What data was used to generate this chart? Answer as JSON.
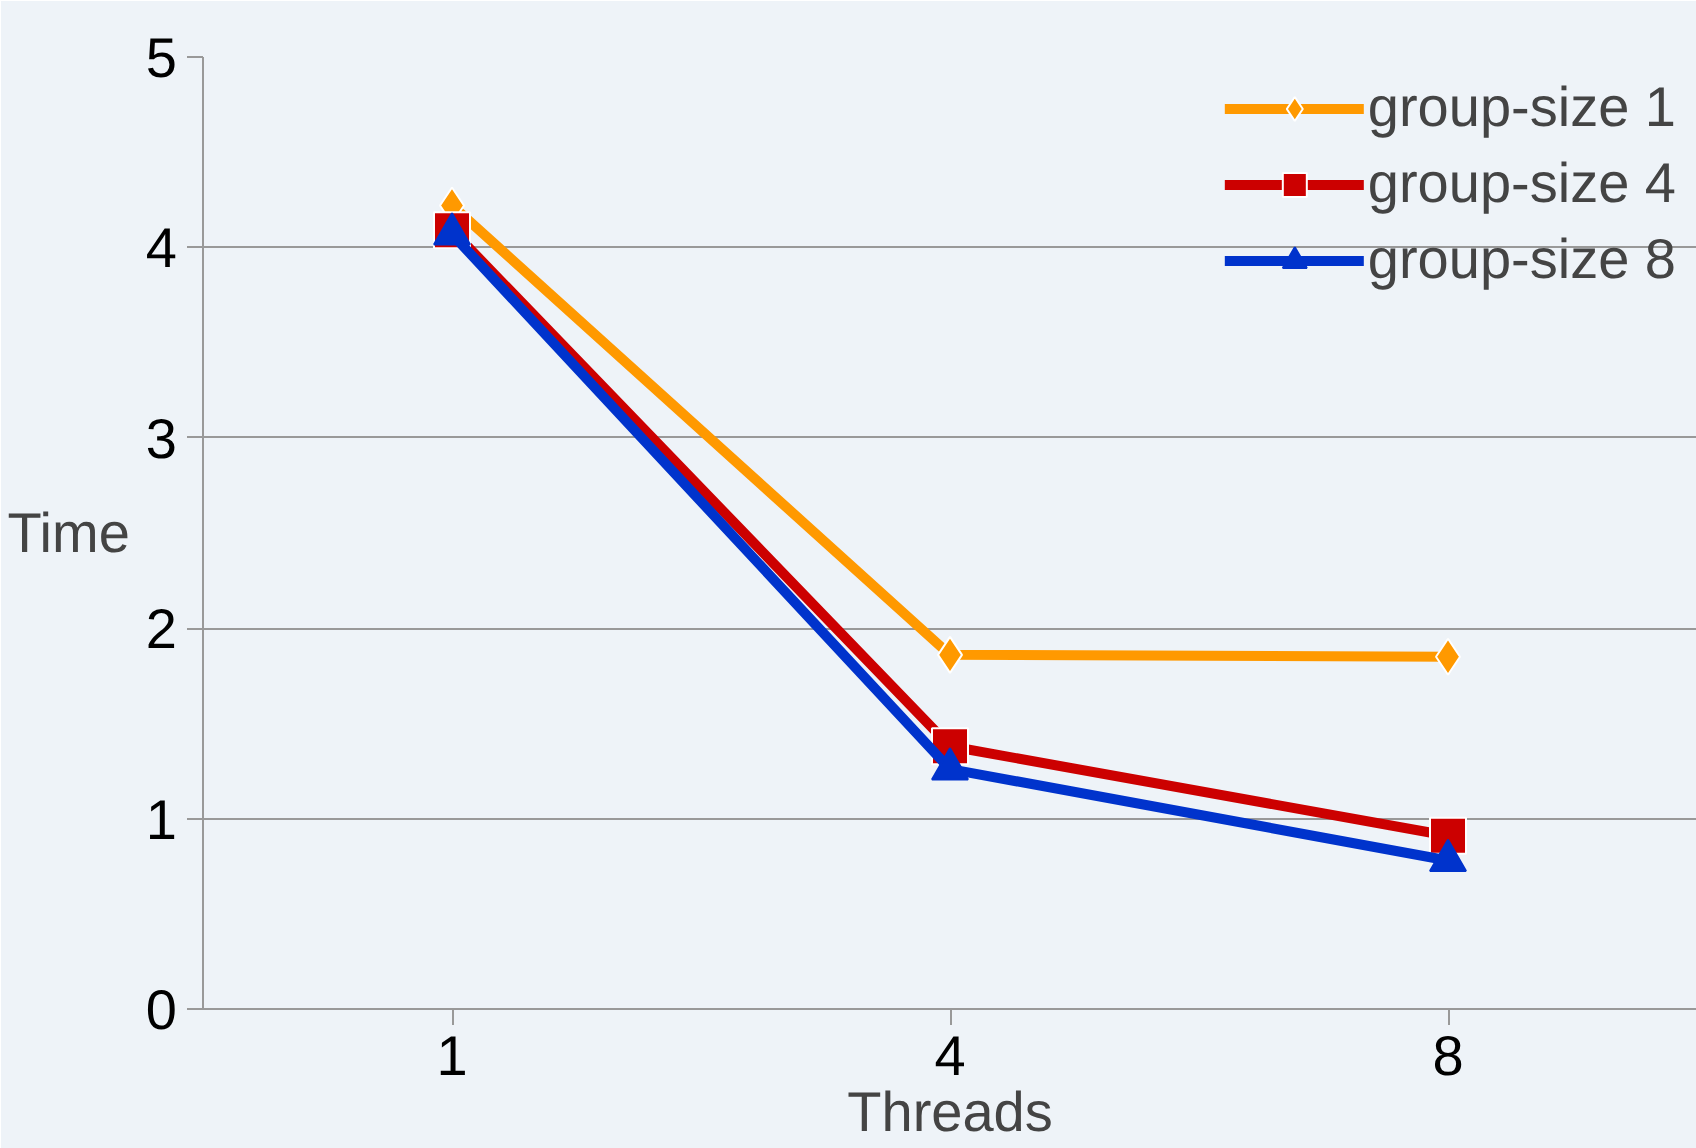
{
  "chart_data": {
    "type": "line",
    "xlabel": "Threads",
    "ylabel": "Time",
    "categories": [
      "1",
      "4",
      "8"
    ],
    "series": [
      {
        "name": "group-size 1",
        "color": "#ff9900",
        "marker": "diamond",
        "values": [
          4.22,
          1.86,
          1.85
        ]
      },
      {
        "name": "group-size 4",
        "color": "#cc0000",
        "marker": "square",
        "values": [
          4.09,
          1.38,
          0.91
        ]
      },
      {
        "name": "group-size 8",
        "color": "#0033cc",
        "marker": "triangle",
        "values": [
          4.07,
          1.26,
          0.78
        ]
      }
    ],
    "ylim": [
      0,
      5
    ],
    "yticks": [
      0,
      1,
      2,
      3,
      4,
      5
    ],
    "grid": "y",
    "legend": "top right"
  }
}
